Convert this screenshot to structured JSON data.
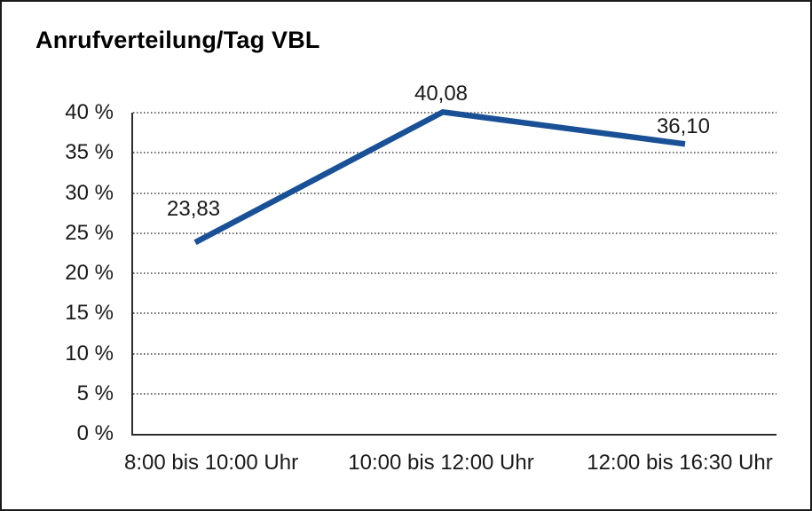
{
  "figure": {
    "title": "Anrufverteilung/Tag VBL"
  },
  "chart_data": {
    "type": "line",
    "title": "Anrufverteilung/Tag VBL",
    "categories": [
      "8:00 bis 10:00 Uhr",
      "10:00 bis 12:00 Uhr",
      "12:00 bis 16:30 Uhr"
    ],
    "values": [
      23.83,
      40.08,
      36.1
    ],
    "data_labels": [
      "23,83",
      "40,08",
      "36,10"
    ],
    "xlabel": "",
    "ylabel": "",
    "ylim": [
      0,
      40
    ],
    "ytick_step": 5,
    "ytick_labels": [
      "0 %",
      "5 %",
      "10 %",
      "15 %",
      "20 %",
      "25 %",
      "30 %",
      "35 %",
      "40 %"
    ],
    "ytick_suffix": "%",
    "grid": "horizontal-dotted",
    "legend": "none",
    "line_color": "#1A5096",
    "line_width": 6.5,
    "gridline_color": "#6e6e6e",
    "axis_color": "#2b2b2b",
    "x_positions": [
      0.0966,
      0.4814,
      0.8579
    ]
  }
}
